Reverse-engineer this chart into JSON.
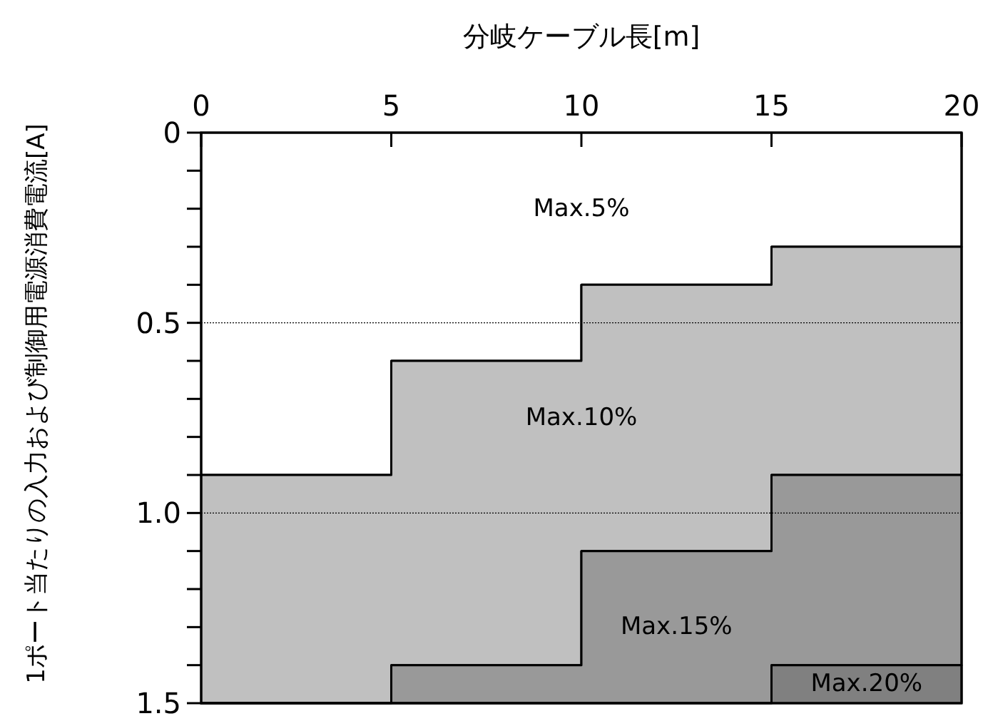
{
  "chart_data": {
    "type": "area",
    "stacked": true,
    "xlabel": "分岐ケーブル長[m]",
    "ylabel": "1ポート当たりの入力および制御用電源消費電流[A]",
    "x": [
      0,
      5,
      10,
      15,
      20
    ],
    "xlim": [
      0,
      20
    ],
    "xticks": [
      0,
      5,
      10,
      15,
      20
    ],
    "ylim": [
      1.5,
      0
    ],
    "yticks": [
      0,
      {
        "value": 0.1,
        "label": null
      },
      {
        "value": 0.2,
        "label": null
      },
      {
        "value": 0.3,
        "label": null
      },
      {
        "value": 0.4,
        "label": null
      },
      {
        "value": 0.5,
        "label": "0.5"
      },
      {
        "value": 0.6,
        "label": null
      },
      {
        "value": 0.7,
        "label": null
      },
      {
        "value": 0.8,
        "label": null
      },
      {
        "value": 0.9,
        "label": null
      },
      {
        "value": 1.0,
        "label": "1.0"
      },
      {
        "value": 1.1,
        "label": null
      },
      {
        "value": 1.2,
        "label": null
      },
      {
        "value": 1.3,
        "label": null
      },
      {
        "value": 1.4,
        "label": null
      },
      {
        "value": 1.5,
        "label": "1.5"
      }
    ],
    "grid": "y",
    "series": [
      {
        "name": "Max.5%",
        "color": "#ffffff",
        "values": [
          0.9,
          0.6,
          0.4,
          0.3,
          0.3
        ]
      },
      {
        "name": "Max.10%",
        "color": "#c0c0c0",
        "values": [
          0.6,
          0.8,
          0.7,
          0.6,
          0.6
        ]
      },
      {
        "name": "Max.15%",
        "color": "#999999",
        "values": [
          0,
          0.1,
          0.4,
          0.5,
          0.5
        ]
      },
      {
        "name": "Max.20%",
        "color": "#808080",
        "values": [
          0,
          0,
          0,
          0.1,
          0.1
        ]
      }
    ]
  }
}
